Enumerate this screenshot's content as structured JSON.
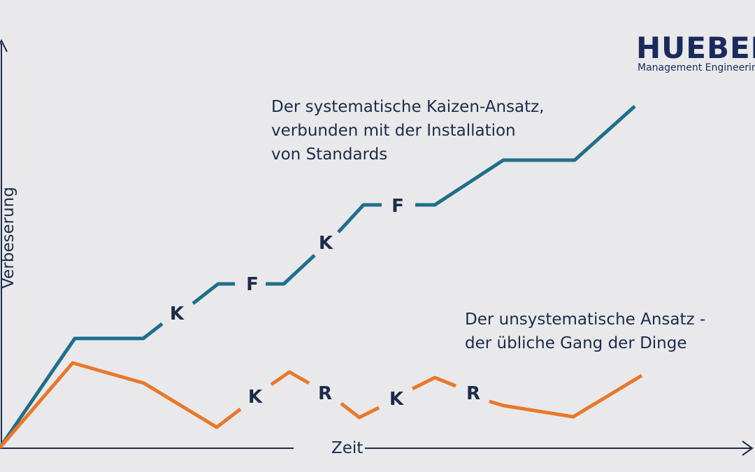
{
  "logo": {
    "brand": "HUEBER",
    "tagline": "Management Engineering"
  },
  "axes": {
    "y_label": "Verbeserung",
    "x_label": "Zeit"
  },
  "annotations": {
    "systematic": [
      "Der systematische Kaizen-Ansatz,",
      "verbunden mit der Installation",
      "von Standards"
    ],
    "unsystematic": [
      "Der unsystematische Ansatz -",
      "der übliche Gang der Dinge"
    ]
  },
  "colors": {
    "systematic": "#1f6f8b",
    "unsystematic": "#e8782a",
    "axis": "#1d2b4a",
    "background": "#e9e9eb"
  },
  "steps": {
    "systematic": [
      "K",
      "F",
      "K",
      "F"
    ],
    "unsystematic": [
      "K",
      "R",
      "K",
      "R"
    ]
  }
}
